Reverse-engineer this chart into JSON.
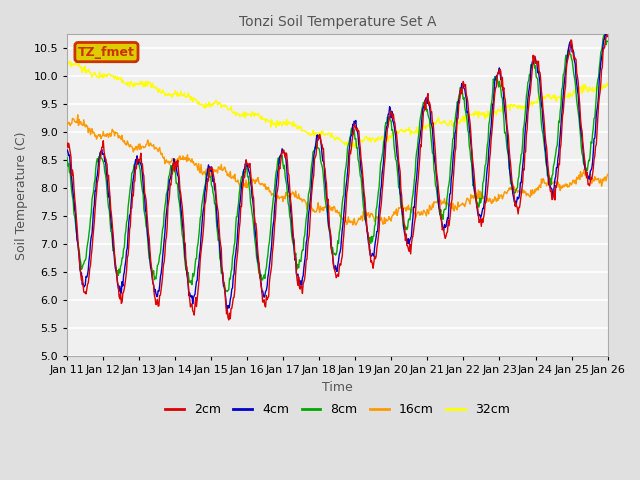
{
  "title": "Tonzi Soil Temperature Set A",
  "xlabel": "Time",
  "ylabel": "Soil Temperature (C)",
  "ylim": [
    5.0,
    10.75
  ],
  "xlim": [
    0,
    15
  ],
  "xtick_labels": [
    "Jan 11",
    "Jan 12",
    "Jan 13",
    "Jan 14",
    "Jan 15",
    "Jan 16",
    "Jan 17",
    "Jan 18",
    "Jan 19",
    "Jan 20",
    "Jan 21",
    "Jan 22",
    "Jan 23",
    "Jan 24",
    "Jan 25",
    "Jan 26"
  ],
  "legend_label": "TZ_fmet",
  "legend_box_edgecolor": "#cc3300",
  "legend_box_fill": "#ddcc00",
  "series_colors": [
    "#dd0000",
    "#0000cc",
    "#00aa00",
    "#ff9900",
    "#ffff00"
  ],
  "series_labels": [
    "2cm",
    "4cm",
    "8cm",
    "16cm",
    "32cm"
  ],
  "background_color": "#e0e0e0",
  "plot_bg_color": "#f0f0f0",
  "grid_color": "#ffffff",
  "title_color": "#555555",
  "label_color": "#555555"
}
